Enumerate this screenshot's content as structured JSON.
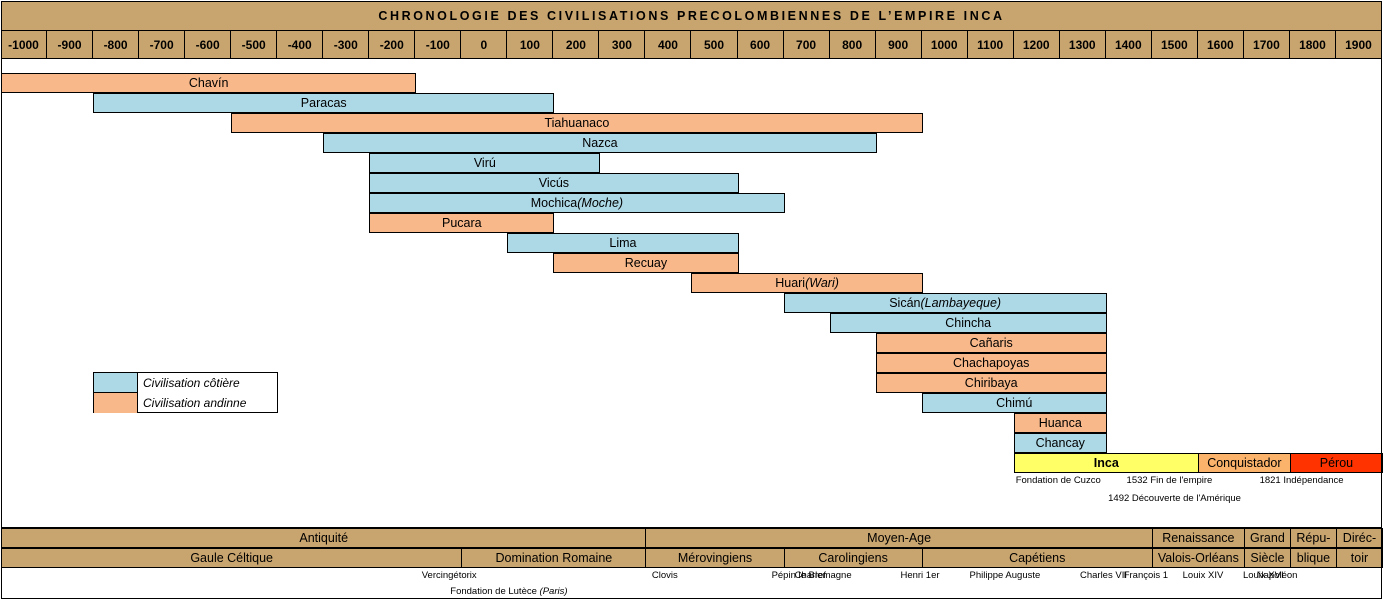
{
  "chart_data": {
    "type": "timeline",
    "title": "CHRONOLOGIE DES CIVILISATIONS PRECOLOMBIENNES DE L’EMPIRE INCA",
    "x_ticks": [
      "-1000",
      "-900",
      "-800",
      "-700",
      "-600",
      "-500",
      "-400",
      "-300",
      "-200",
      "-100",
      "0",
      "100",
      "200",
      "300",
      "400",
      "500",
      "600",
      "700",
      "800",
      "900",
      "1000",
      "1100",
      "1200",
      "1300",
      "1400",
      "1500",
      "1600",
      "1700",
      "1800",
      "1900"
    ],
    "colors": {
      "cotiere": "#add8e6",
      "andinne": "#f8b88a",
      "inca": "#ffff66",
      "conquistador": "#fbb36b",
      "perou": "#ff3300",
      "period": "#c8a46e"
    },
    "civilisations": [
      {
        "name": "Chavín",
        "alt": "",
        "start": -1000,
        "end": -100,
        "kind": "andinne"
      },
      {
        "name": "Paracas",
        "alt": "",
        "start": -800,
        "end": 200,
        "kind": "cotiere"
      },
      {
        "name": "Tiahuanaco",
        "alt": "",
        "start": -500,
        "end": 1000,
        "kind": "andinne"
      },
      {
        "name": "Nazca",
        "alt": "",
        "start": -300,
        "end": 900,
        "kind": "cotiere"
      },
      {
        "name": "Virú",
        "alt": "",
        "start": -200,
        "end": 300,
        "kind": "cotiere"
      },
      {
        "name": "Vicús",
        "alt": "",
        "start": -200,
        "end": 600,
        "kind": "cotiere"
      },
      {
        "name": "Mochica ",
        "alt": "(Moche)",
        "start": -200,
        "end": 700,
        "kind": "cotiere"
      },
      {
        "name": "Pucara",
        "alt": "",
        "start": -200,
        "end": 200,
        "kind": "andinne"
      },
      {
        "name": "Lima",
        "alt": "",
        "start": 100,
        "end": 600,
        "kind": "cotiere"
      },
      {
        "name": "Recuay",
        "alt": "",
        "start": 200,
        "end": 600,
        "kind": "andinne"
      },
      {
        "name": "Huari ",
        "alt": "(Wari)",
        "start": 500,
        "end": 1000,
        "kind": "andinne"
      },
      {
        "name": "Sicán ",
        "alt": "(Lambayeque)",
        "start": 700,
        "end": 1400,
        "kind": "cotiere"
      },
      {
        "name": "Chincha",
        "alt": "",
        "start": 800,
        "end": 1400,
        "kind": "cotiere"
      },
      {
        "name": "Cañaris",
        "alt": "",
        "start": 900,
        "end": 1400,
        "kind": "andinne"
      },
      {
        "name": "Chachapoyas",
        "alt": "",
        "start": 900,
        "end": 1400,
        "kind": "andinne"
      },
      {
        "name": "Chiribaya",
        "alt": "",
        "start": 900,
        "end": 1400,
        "kind": "andinne"
      },
      {
        "name": "Chimú",
        "alt": "",
        "start": 1000,
        "end": 1400,
        "kind": "cotiere"
      },
      {
        "name": "Huanca",
        "alt": "",
        "start": 1200,
        "end": 1400,
        "kind": "andinne"
      },
      {
        "name": "Chancay",
        "alt": "",
        "start": 1200,
        "end": 1400,
        "kind": "cotiere"
      }
    ],
    "final_bars": [
      {
        "name": "Inca",
        "start": 1200,
        "end": 1600,
        "kind": "inca",
        "bold": true
      },
      {
        "name": "Conquistador",
        "start": 1600,
        "end": 1800,
        "kind": "conquistador",
        "bold": false
      },
      {
        "name": "Pérou",
        "start": 1800,
        "end": 2000,
        "kind": "perou",
        "bold": false
      }
    ],
    "events": [
      {
        "text": "Fondation de Cuzco",
        "x": 1200,
        "row": 0
      },
      {
        "text": "1532 Fin de l'empire",
        "x": 1532,
        "row": 0
      },
      {
        "text": "1821 Indépendance",
        "x": 1821,
        "row": 0
      },
      {
        "text": "1492 Découverte de l'Amérique",
        "x": 1492,
        "row": 1
      }
    ],
    "legend": [
      {
        "label": "Civilisation côtière",
        "kind": "cotiere"
      },
      {
        "label": "Civilisation andinne",
        "kind": "andinne"
      }
    ],
    "periods_top": [
      {
        "name": "Antiquité",
        "start": -1000,
        "end": 400
      },
      {
        "name": "Moyen-Age",
        "start": 400,
        "end": 1500
      },
      {
        "name": "Renaissance",
        "start": 1500,
        "end": 1700
      },
      {
        "name": "Grand",
        "start": 1700,
        "end": 1800
      },
      {
        "name": "Répu-",
        "start": 1800,
        "end": 1900
      },
      {
        "name": "Diréc-",
        "start": 1900,
        "end": 2000
      }
    ],
    "periods_bottom": [
      {
        "name": "Gaule Céltique",
        "start": -1000,
        "end": 0
      },
      {
        "name": "Domination Romaine",
        "start": 0,
        "end": 400
      },
      {
        "name": "Mérovingiens",
        "start": 400,
        "end": 700
      },
      {
        "name": "Carolingiens",
        "start": 700,
        "end": 1000
      },
      {
        "name": "Capétiens",
        "start": 1000,
        "end": 1500
      },
      {
        "name": "Valois-Orléans",
        "start": 1500,
        "end": 1700
      },
      {
        "name": "Siècle",
        "start": 1700,
        "end": 1800
      },
      {
        "name": "blique",
        "start": 1800,
        "end": 1900
      },
      {
        "name": "toir",
        "start": 1900,
        "end": 2000
      }
    ],
    "rulers": [
      {
        "text": "Vercingétorix",
        "x": -10,
        "row": 0
      },
      {
        "text": "Clovis",
        "x": 490,
        "row": 0
      },
      {
        "text": "Pépin le Bref",
        "x": 750,
        "row": 0
      },
      {
        "text": "Charlemagne",
        "x": 800,
        "row": 0
      },
      {
        "text": "Henri 1er",
        "x": 1030,
        "row": 0
      },
      {
        "text": "Philippe Auguste",
        "x": 1180,
        "row": 0
      },
      {
        "text": "Charles VII",
        "x": 1420,
        "row": 0
      },
      {
        "text": "François 1",
        "x": 1515,
        "row": 0
      },
      {
        "text": "Louix XIV",
        "x": 1643,
        "row": 0
      },
      {
        "text": "Louix XVI",
        "x": 1774,
        "row": 0
      },
      {
        "text": "Napoléon",
        "x": 1804,
        "row": 0
      },
      {
        "text": "Fondation de Lutèce ",
        "italic": "(Paris)",
        "x": 52,
        "row": 1
      }
    ]
  }
}
